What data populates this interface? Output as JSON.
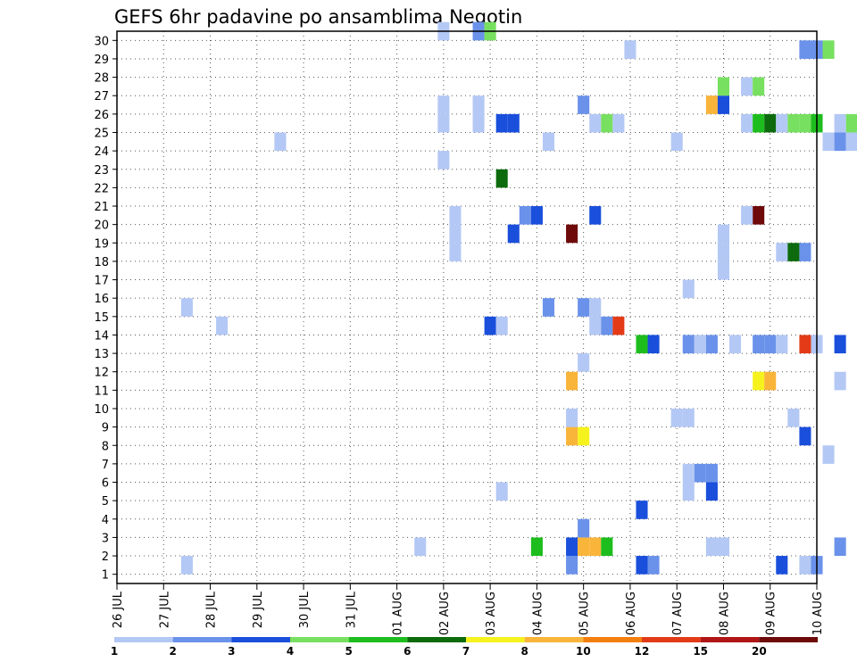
{
  "chart_data": {
    "type": "heatmap",
    "title": "GEFS 6hr padavine po ansamblima Negotin",
    "xlabel": "",
    "ylabel": "",
    "x_tick_labels": [
      "26 JUL",
      "27 JUL",
      "28 JUL",
      "29 JUL",
      "30 JUL",
      "31 JUL",
      "01 AUG",
      "02 AUG",
      "03 AUG",
      "04 AUG",
      "05 AUG",
      "06 AUG",
      "07 AUG",
      "08 AUG",
      "09 AUG",
      "10 AUG"
    ],
    "y_tick_labels": [
      "1",
      "2",
      "3",
      "4",
      "5",
      "6",
      "7",
      "8",
      "9",
      "10",
      "11",
      "12",
      "13",
      "14",
      "15",
      "16",
      "17",
      "18",
      "19",
      "20",
      "21",
      "22",
      "23",
      "24",
      "25",
      "26",
      "27",
      "28",
      "29",
      "30"
    ],
    "ylim": [
      1,
      30
    ],
    "grid": true,
    "colorbar": {
      "labels": [
        "1",
        "2",
        "3",
        "4",
        "5",
        "6",
        "7",
        "8",
        "10",
        "12",
        "15",
        "20"
      ],
      "colors": [
        "#b4c8f5",
        "#6a92ea",
        "#1a4fdc",
        "#78e060",
        "#1ebd1e",
        "#0d6b0d",
        "#f6f21e",
        "#f9b43a",
        "#f47f0f",
        "#e33b17",
        "#b01616",
        "#6e0a0a"
      ]
    },
    "cells": [
      {
        "x": 1.5,
        "y": 1,
        "v": 1
      },
      {
        "x": 6.5,
        "y": 2,
        "v": 1
      },
      {
        "x": 9,
        "y": 2,
        "v": 5
      },
      {
        "x": 8.25,
        "y": 5,
        "v": 1
      },
      {
        "x": 9.75,
        "y": 1,
        "v": 2
      },
      {
        "x": 9.75,
        "y": 2,
        "v": 3
      },
      {
        "x": 10,
        "y": 2,
        "v": 8
      },
      {
        "x": 10.25,
        "y": 2,
        "v": 8
      },
      {
        "x": 10.5,
        "y": 2,
        "v": 5
      },
      {
        "x": 10,
        "y": 3,
        "v": 2
      },
      {
        "x": 11.25,
        "y": 1,
        "v": 3
      },
      {
        "x": 11.5,
        "y": 1,
        "v": 2
      },
      {
        "x": 11.25,
        "y": 4,
        "v": 3
      },
      {
        "x": 12.75,
        "y": 2,
        "v": 1
      },
      {
        "x": 13,
        "y": 2,
        "v": 1
      },
      {
        "x": 12.25,
        "y": 5,
        "v": 1
      },
      {
        "x": 12.75,
        "y": 5,
        "v": 3
      },
      {
        "x": 12.25,
        "y": 6,
        "v": 1
      },
      {
        "x": 12.5,
        "y": 6,
        "v": 2
      },
      {
        "x": 12.75,
        "y": 6,
        "v": 2
      },
      {
        "x": 14.25,
        "y": 1,
        "v": 3
      },
      {
        "x": 14.75,
        "y": 1,
        "v": 1
      },
      {
        "x": 15,
        "y": 1,
        "v": 2
      },
      {
        "x": 15.5,
        "y": 2,
        "v": 2
      },
      {
        "x": 15.25,
        "y": 7,
        "v": 1
      },
      {
        "x": 14.75,
        "y": 8,
        "v": 3
      },
      {
        "x": 14.5,
        "y": 9,
        "v": 1
      },
      {
        "x": 12,
        "y": 9,
        "v": 1
      },
      {
        "x": 12.25,
        "y": 9,
        "v": 1
      },
      {
        "x": 9.75,
        "y": 8,
        "v": 8
      },
      {
        "x": 10,
        "y": 8,
        "v": 7
      },
      {
        "x": 9.75,
        "y": 9,
        "v": 1
      },
      {
        "x": 9.75,
        "y": 11,
        "v": 8
      },
      {
        "x": 10,
        "y": 12,
        "v": 1
      },
      {
        "x": 13.75,
        "y": 11,
        "v": 7
      },
      {
        "x": 14,
        "y": 11,
        "v": 8
      },
      {
        "x": 15.5,
        "y": 11,
        "v": 1
      },
      {
        "x": 11.25,
        "y": 13,
        "v": 5
      },
      {
        "x": 11.5,
        "y": 13,
        "v": 3
      },
      {
        "x": 12.25,
        "y": 13,
        "v": 2
      },
      {
        "x": 12.5,
        "y": 13,
        "v": 1
      },
      {
        "x": 12.75,
        "y": 13,
        "v": 2
      },
      {
        "x": 13.25,
        "y": 13,
        "v": 1
      },
      {
        "x": 13.75,
        "y": 13,
        "v": 2
      },
      {
        "x": 14,
        "y": 13,
        "v": 2
      },
      {
        "x": 14.25,
        "y": 13,
        "v": 1
      },
      {
        "x": 14.75,
        "y": 13,
        "v": 10
      },
      {
        "x": 15,
        "y": 13,
        "v": 1
      },
      {
        "x": 15.5,
        "y": 13,
        "v": 3
      },
      {
        "x": 2.25,
        "y": 14,
        "v": 1
      },
      {
        "x": 8,
        "y": 14,
        "v": 3
      },
      {
        "x": 8.25,
        "y": 14,
        "v": 1
      },
      {
        "x": 10.25,
        "y": 14,
        "v": 1
      },
      {
        "x": 10.5,
        "y": 14,
        "v": 2
      },
      {
        "x": 10.75,
        "y": 14,
        "v": 10
      },
      {
        "x": 1.5,
        "y": 15,
        "v": 1
      },
      {
        "x": 9.25,
        "y": 15,
        "v": 2
      },
      {
        "x": 10,
        "y": 15,
        "v": 2
      },
      {
        "x": 10.25,
        "y": 15,
        "v": 1
      },
      {
        "x": 12.25,
        "y": 16,
        "v": 1
      },
      {
        "x": 13,
        "y": 17,
        "v": 1
      },
      {
        "x": 13,
        "y": 18,
        "v": 1
      },
      {
        "x": 14.25,
        "y": 18,
        "v": 1
      },
      {
        "x": 7.25,
        "y": 18,
        "v": 1
      },
      {
        "x": 7.25,
        "y": 19,
        "v": 1
      },
      {
        "x": 8.5,
        "y": 19,
        "v": 3
      },
      {
        "x": 9.75,
        "y": 19,
        "v": 20
      },
      {
        "x": 13,
        "y": 19,
        "v": 1
      },
      {
        "x": 14.75,
        "y": 18,
        "v": 2
      },
      {
        "x": 14.5,
        "y": 18,
        "v": 6
      },
      {
        "x": 7.25,
        "y": 20,
        "v": 1
      },
      {
        "x": 13.75,
        "y": 20,
        "v": 15
      },
      {
        "x": 13.5,
        "y": 20,
        "v": 1
      },
      {
        "x": 8.75,
        "y": 20,
        "v": 2
      },
      {
        "x": 9,
        "y": 20,
        "v": 3
      },
      {
        "x": 10.25,
        "y": 20,
        "v": 3
      },
      {
        "x": 8.25,
        "y": 22,
        "v": 6
      },
      {
        "x": 7,
        "y": 23,
        "v": 1
      },
      {
        "x": 3.5,
        "y": 24,
        "v": 1
      },
      {
        "x": 9.25,
        "y": 24,
        "v": 1
      },
      {
        "x": 12,
        "y": 24,
        "v": 1
      },
      {
        "x": 15.25,
        "y": 24,
        "v": 1
      },
      {
        "x": 15.5,
        "y": 24,
        "v": 2
      },
      {
        "x": 15.75,
        "y": 24,
        "v": 1
      },
      {
        "x": 7,
        "y": 25,
        "v": 1
      },
      {
        "x": 7.75,
        "y": 25,
        "v": 1
      },
      {
        "x": 8.25,
        "y": 25,
        "v": 3
      },
      {
        "x": 8.5,
        "y": 25,
        "v": 3
      },
      {
        "x": 10.25,
        "y": 25,
        "v": 1
      },
      {
        "x": 10.5,
        "y": 25,
        "v": 4
      },
      {
        "x": 10.75,
        "y": 25,
        "v": 1
      },
      {
        "x": 13.5,
        "y": 25,
        "v": 1
      },
      {
        "x": 13.75,
        "y": 25,
        "v": 5
      },
      {
        "x": 14,
        "y": 25,
        "v": 6
      },
      {
        "x": 14.25,
        "y": 25,
        "v": 1
      },
      {
        "x": 14.5,
        "y": 25,
        "v": 4
      },
      {
        "x": 14.75,
        "y": 25,
        "v": 4
      },
      {
        "x": 15,
        "y": 25,
        "v": 5
      },
      {
        "x": 15.5,
        "y": 25,
        "v": 1
      },
      {
        "x": 15.75,
        "y": 25,
        "v": 4
      },
      {
        "x": 7,
        "y": 26,
        "v": 1
      },
      {
        "x": 7.75,
        "y": 26,
        "v": 1
      },
      {
        "x": 10,
        "y": 26,
        "v": 2
      },
      {
        "x": 12.75,
        "y": 26,
        "v": 8
      },
      {
        "x": 13,
        "y": 26,
        "v": 3
      },
      {
        "x": 13,
        "y": 27,
        "v": 4
      },
      {
        "x": 13.5,
        "y": 27,
        "v": 1
      },
      {
        "x": 13.75,
        "y": 27,
        "v": 4
      },
      {
        "x": 11,
        "y": 29,
        "v": 1
      },
      {
        "x": 14.75,
        "y": 29,
        "v": 2
      },
      {
        "x": 15,
        "y": 29,
        "v": 2
      },
      {
        "x": 15.25,
        "y": 29,
        "v": 4
      },
      {
        "x": 7,
        "y": 30,
        "v": 1
      },
      {
        "x": 7.75,
        "y": 30,
        "v": 2
      },
      {
        "x": 8,
        "y": 30,
        "v": 4
      }
    ]
  }
}
